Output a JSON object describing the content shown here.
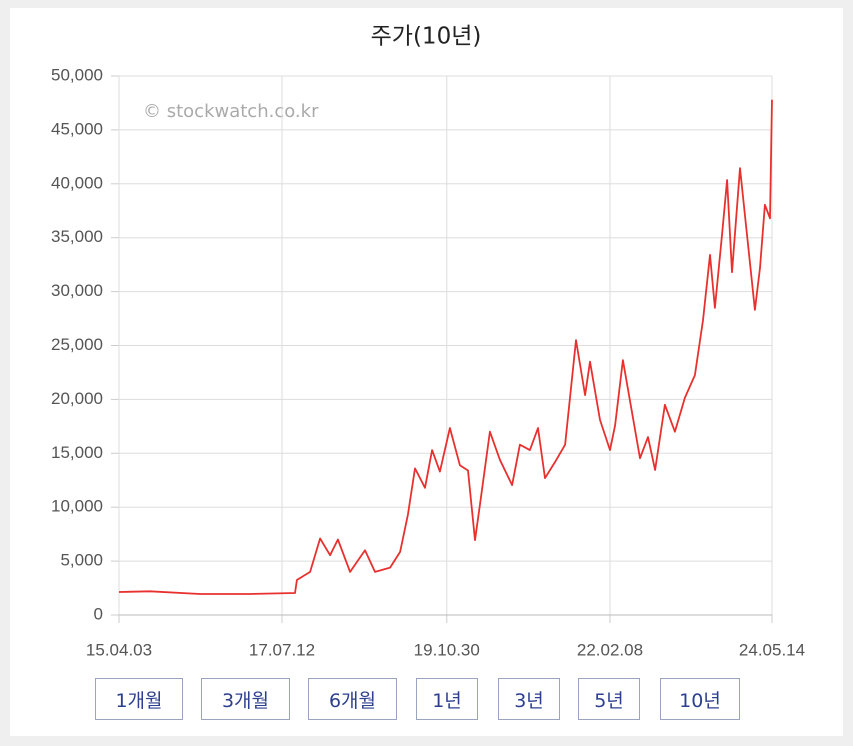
{
  "chart_data": {
    "type": "line",
    "title": "주가(10년)",
    "annotation": "© stockwatch.co.kr",
    "x": [
      "15.04.03",
      "15.09.08",
      "16.05.20",
      "17.01.30",
      "17.09.16",
      "17.09.26",
      "17.12.02",
      "18.01.22",
      "18.03.14",
      "18.04.23",
      "18.06.24",
      "18.09.08",
      "18.10.29",
      "19.01.14",
      "19.03.06",
      "19.04.15",
      "19.05.21",
      "19.07.11",
      "19.08.16",
      "19.09.25",
      "19.11.15",
      "20.01.05",
      "20.02.15",
      "20.03.22",
      "20.04.16",
      "20.06.06",
      "20.07.27",
      "20.09.27",
      "20.11.06",
      "20.12.27",
      "21.02.06",
      "21.03.14",
      "21.05.04",
      "21.06.24",
      "21.08.19",
      "21.10.04",
      "21.10.29",
      "21.12.19",
      "22.02.08",
      "22.03.06",
      "22.04.15",
      "22.06.16",
      "22.07.11",
      "22.08.21",
      "22.09.26",
      "22.11.15",
      "23.01.05",
      "23.02.25",
      "23.04.17",
      "23.05.28",
      "23.07.03",
      "23.07.28",
      "23.09.02",
      "23.09.28",
      "23.10.23",
      "23.12.03",
      "24.01.13",
      "24.02.17",
      "24.03.14",
      "24.04.08",
      "24.05.04",
      "24.05.14"
    ],
    "series": [
      {
        "name": "주가",
        "color": "#e8312f",
        "values": [
          2130,
          2200,
          1950,
          1950,
          2040,
          3250,
          4000,
          7100,
          5550,
          7000,
          4000,
          6000,
          4000,
          4400,
          5850,
          9300,
          13600,
          11800,
          15300,
          13300,
          17350,
          13900,
          13400,
          6950,
          10200,
          17000,
          14400,
          12050,
          15800,
          15300,
          17350,
          12700,
          14200,
          15800,
          25500,
          20400,
          23500,
          18100,
          15300,
          17600,
          23650,
          17150,
          14550,
          16500,
          13450,
          19500,
          17000,
          20150,
          22250,
          27350,
          33400,
          28500,
          35250,
          40350,
          31800,
          41450,
          34300,
          28300,
          32200,
          38050,
          36800,
          47800
        ]
      }
    ],
    "xlim": [
      "15.04.03",
      "24.05.14"
    ],
    "xticks": [
      "15.04.03",
      "17.07.12",
      "19.10.30",
      "22.02.08",
      "24.05.14"
    ],
    "ylim": [
      0,
      50000
    ],
    "yticks": [
      0,
      {
        "value": 5000,
        "label": "5,000"
      },
      {
        "value": 10000,
        "label": "10,000"
      },
      {
        "value": 15000,
        "label": "15,000"
      },
      {
        "value": 20000,
        "label": "20,000"
      },
      {
        "value": 25000,
        "label": "25,000"
      },
      {
        "value": 30000,
        "label": "30,000"
      },
      {
        "value": 35000,
        "label": "35,000"
      },
      {
        "value": 40000,
        "label": "40,000"
      },
      {
        "value": 45000,
        "label": "45,000"
      },
      {
        "value": 50000,
        "label": "50,000"
      }
    ],
    "grid": true
  },
  "buttons": [
    "1개월",
    "3개월",
    "6개월",
    "1년",
    "3년",
    "5년",
    "10년"
  ]
}
